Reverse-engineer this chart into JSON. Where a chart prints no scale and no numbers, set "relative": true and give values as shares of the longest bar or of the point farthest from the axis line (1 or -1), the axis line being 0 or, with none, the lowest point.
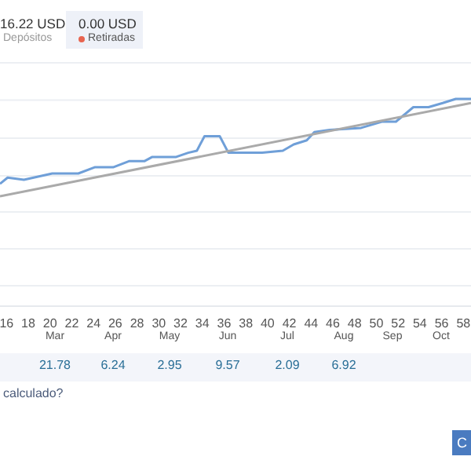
{
  "chart_data": {
    "type": "line",
    "relative": true,
    "grid": "y",
    "marker": "none",
    "x": [
      15.4,
      16.1,
      17.6,
      20.2,
      22.6,
      24.1,
      25.8,
      27.3,
      28.7,
      29.4,
      31.6,
      32.7,
      33.5,
      34.2,
      35.6,
      36.4,
      37.5,
      39.5,
      41.4,
      42.4,
      43.6,
      44.3,
      45.7,
      48.6,
      50.5,
      51.8,
      53.4,
      54.8,
      56.1,
      57.3,
      58.7
    ],
    "series": [
      {
        "color": "#6f9fd8",
        "values": [
          0.59,
          0.62,
          0.61,
          0.64,
          0.64,
          0.67,
          0.67,
          0.7,
          0.7,
          0.72,
          0.72,
          0.74,
          0.75,
          0.82,
          0.82,
          0.74,
          0.74,
          0.74,
          0.75,
          0.78,
          0.8,
          0.84,
          0.85,
          0.86,
          0.89,
          0.89,
          0.96,
          0.96,
          0.98,
          1,
          1
        ]
      },
      {
        "color": "#aaaaaa",
        "x": [
          15.4,
          58.7
        ],
        "values": [
          0.53,
          0.98
        ]
      }
    ],
    "xlim": [
      15.4,
      58.7
    ],
    "xticks": [
      16,
      18,
      20,
      22,
      24,
      26,
      28,
      30,
      32,
      34,
      36,
      38,
      40,
      42,
      44,
      46,
      48,
      50,
      52,
      54,
      56,
      58
    ],
    "annotations": [
      "16.22 USD",
      "Depósitos",
      "0.00 USD",
      "Retiradas",
      "21.78",
      "6.24",
      "2.95",
      "9.57",
      "2.09",
      "6.92",
      "calculado?",
      "C",
      "Mar",
      "Apr",
      "May",
      "Jun",
      "Jul",
      "Aug",
      "Sep",
      "Oct"
    ]
  }
}
